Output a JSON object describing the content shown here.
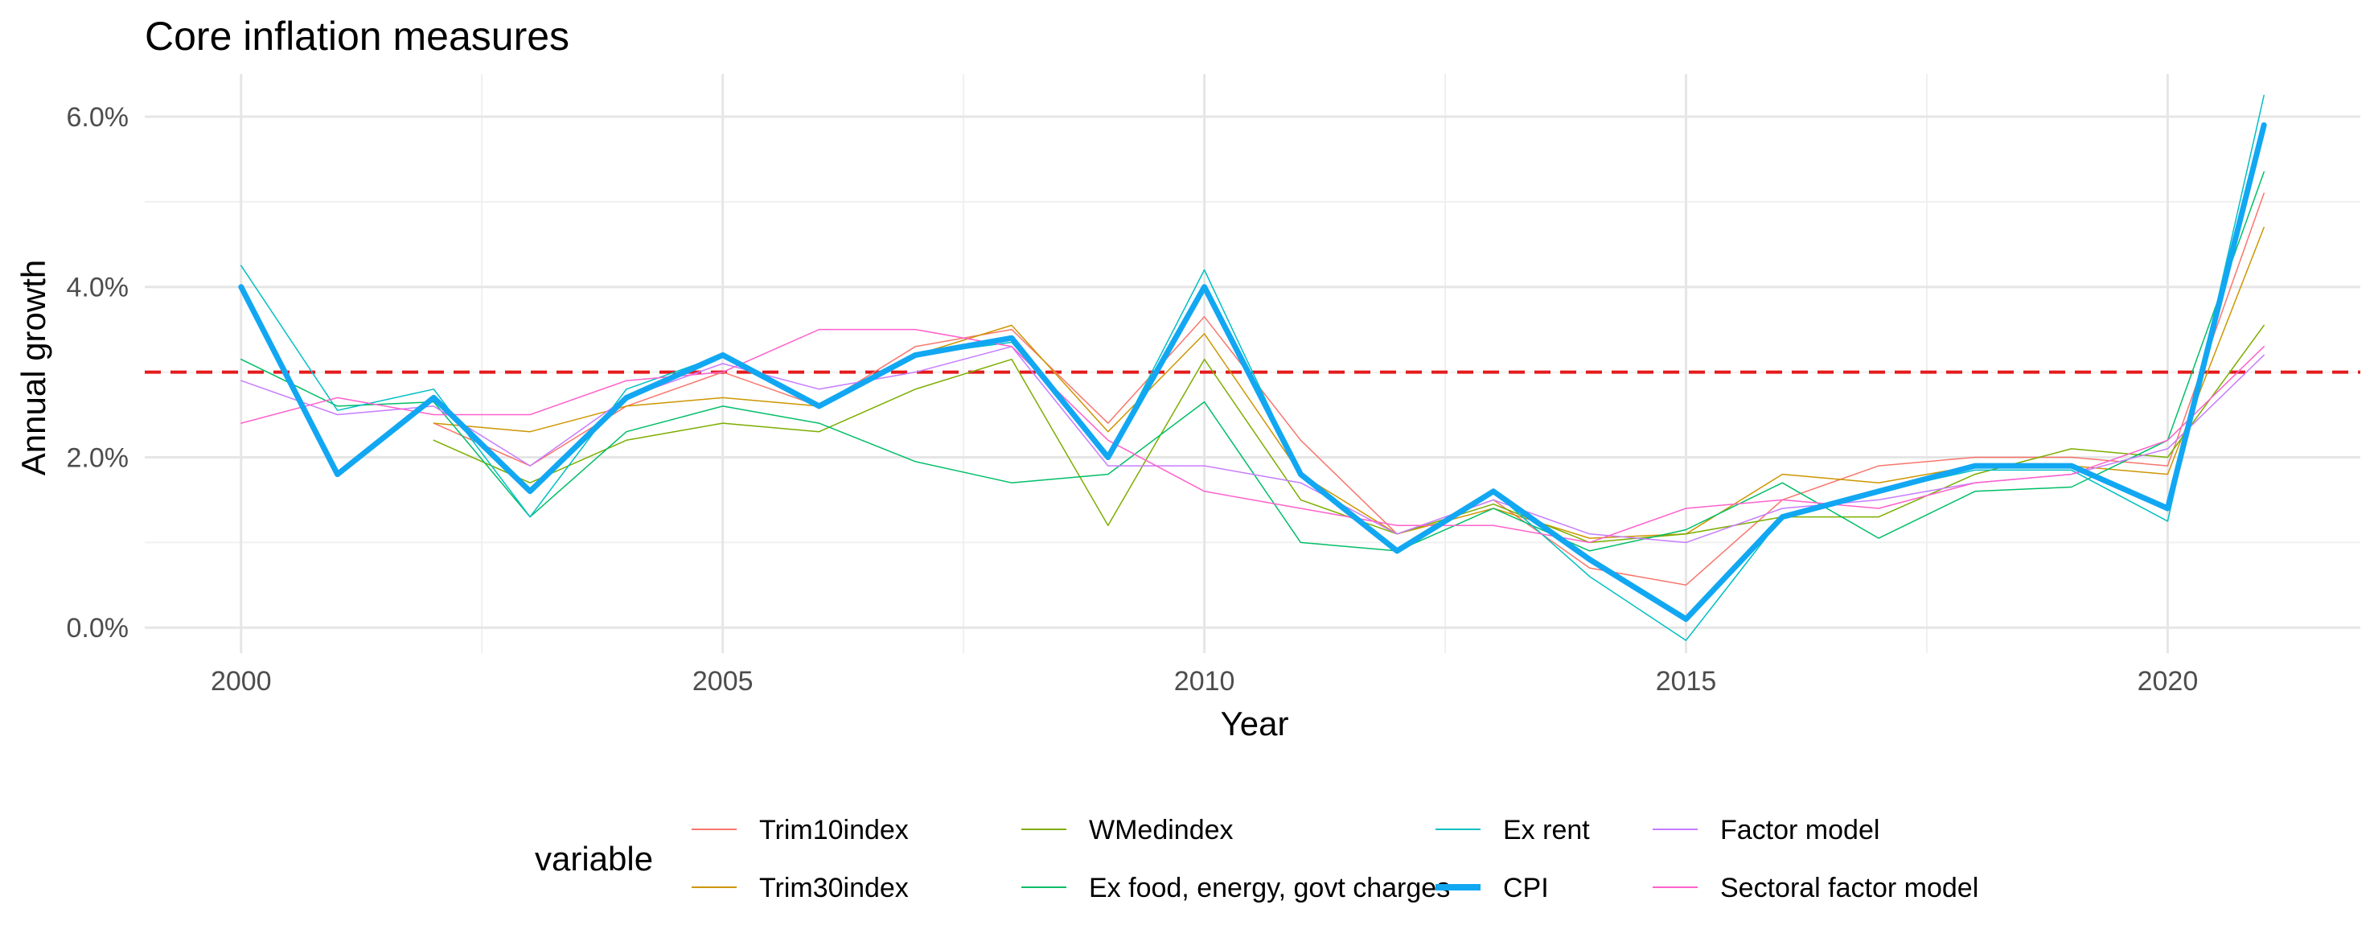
{
  "chart_data": {
    "type": "line",
    "title": "Core inflation measures",
    "xlabel": "Year",
    "ylabel": "Annual growth",
    "xlim": [
      1999,
      2022
    ],
    "ylim": [
      -0.3,
      6.5
    ],
    "x_ticks": [
      2000,
      2005,
      2010,
      2015,
      2020
    ],
    "x_tick_labels": [
      "2000",
      "2005",
      "2010",
      "2015",
      "2020"
    ],
    "y_ticks": [
      0,
      2,
      4,
      6
    ],
    "y_tick_labels": [
      "0.0%",
      "2.0%",
      "4.0%",
      "6.0%"
    ],
    "grid": true,
    "reference_line": {
      "y": 3.0,
      "color": "#e41a1c",
      "style": "dashed"
    },
    "legend": {
      "title": "variable",
      "position": "bottom"
    },
    "series": [
      {
        "name": "Trim10index",
        "color": "#F8766D",
        "width": 1.5,
        "x": [
          2002,
          2003,
          2004,
          2005,
          2006,
          2007,
          2008,
          2009,
          2010,
          2011,
          2012,
          2013,
          2014,
          2015,
          2016,
          2017,
          2018,
          2019,
          2020,
          2021
        ],
        "y": [
          2.4,
          1.9,
          2.6,
          3.0,
          2.6,
          3.3,
          3.5,
          2.4,
          3.65,
          2.2,
          1.1,
          1.5,
          0.7,
          0.5,
          1.5,
          1.9,
          2.0,
          2.0,
          1.9,
          5.1
        ]
      },
      {
        "name": "Trim30index",
        "color": "#CD9600",
        "width": 1.5,
        "x": [
          2002,
          2003,
          2004,
          2005,
          2006,
          2007,
          2008,
          2009,
          2010,
          2011,
          2012,
          2013,
          2014,
          2015,
          2016,
          2017,
          2018,
          2019,
          2020,
          2021
        ],
        "y": [
          2.4,
          2.3,
          2.6,
          2.7,
          2.6,
          3.2,
          3.55,
          2.3,
          3.45,
          1.8,
          1.1,
          1.4,
          1.05,
          1.1,
          1.8,
          1.7,
          1.9,
          1.9,
          1.8,
          4.7
        ]
      },
      {
        "name": "WMedindex",
        "color": "#7CAE00",
        "width": 1.5,
        "x": [
          2002,
          2003,
          2004,
          2005,
          2006,
          2007,
          2008,
          2009,
          2010,
          2011,
          2012,
          2013,
          2014,
          2015,
          2016,
          2017,
          2018,
          2019,
          2020,
          2021
        ],
        "y": [
          2.2,
          1.7,
          2.2,
          2.4,
          2.3,
          2.8,
          3.15,
          1.2,
          3.15,
          1.5,
          1.1,
          1.45,
          1.0,
          1.1,
          1.3,
          1.3,
          1.8,
          2.1,
          2.0,
          3.55
        ]
      },
      {
        "name": "Ex food, energy, govt charges",
        "color": "#00BE67",
        "width": 1.5,
        "x": [
          2000,
          2001,
          2002,
          2003,
          2004,
          2005,
          2006,
          2007,
          2008,
          2009,
          2010,
          2011,
          2012,
          2013,
          2014,
          2015,
          2016,
          2017,
          2018,
          2019,
          2020,
          2021
        ],
        "y": [
          3.15,
          2.6,
          2.65,
          1.3,
          2.3,
          2.6,
          2.4,
          1.95,
          1.7,
          1.8,
          2.65,
          1.0,
          0.9,
          1.4,
          0.9,
          1.15,
          1.7,
          1.05,
          1.6,
          1.65,
          2.2,
          5.35
        ]
      },
      {
        "name": "Ex rent",
        "color": "#00BFC4",
        "width": 1.5,
        "x": [
          2000,
          2001,
          2002,
          2003,
          2004,
          2005,
          2006,
          2007,
          2008,
          2009,
          2010,
          2011,
          2012,
          2013,
          2014,
          2015,
          2016,
          2017,
          2018,
          2019,
          2020,
          2021
        ],
        "y": [
          4.25,
          2.55,
          2.8,
          1.3,
          2.8,
          3.2,
          2.6,
          3.2,
          3.35,
          2.0,
          4.2,
          1.8,
          0.9,
          1.6,
          0.6,
          -0.15,
          1.3,
          1.6,
          1.85,
          1.85,
          1.25,
          6.25
        ]
      },
      {
        "name": "CPI",
        "color": "#12A7F2",
        "width": 7,
        "x": [
          2000,
          2001,
          2002,
          2003,
          2004,
          2005,
          2006,
          2007,
          2008,
          2009,
          2010,
          2011,
          2012,
          2013,
          2014,
          2015,
          2016,
          2017,
          2018,
          2019,
          2020,
          2021
        ],
        "y": [
          4.0,
          1.8,
          2.7,
          1.6,
          2.7,
          3.2,
          2.6,
          3.2,
          3.4,
          2.0,
          4.0,
          1.8,
          0.9,
          1.6,
          0.8,
          0.1,
          1.3,
          1.6,
          1.9,
          1.9,
          1.4,
          5.9
        ]
      },
      {
        "name": "Factor model",
        "color": "#C77CFF",
        "width": 1.5,
        "x": [
          2000,
          2001,
          2002,
          2003,
          2004,
          2005,
          2006,
          2007,
          2008,
          2009,
          2010,
          2011,
          2012,
          2013,
          2014,
          2015,
          2016,
          2017,
          2018,
          2019,
          2020,
          2021
        ],
        "y": [
          2.9,
          2.5,
          2.6,
          1.9,
          2.7,
          3.1,
          2.8,
          3.0,
          3.3,
          1.9,
          1.9,
          1.7,
          1.1,
          1.5,
          1.1,
          1.0,
          1.4,
          1.5,
          1.7,
          1.8,
          2.1,
          3.2
        ]
      },
      {
        "name": "Sectoral factor model",
        "color": "#FF61CC",
        "width": 1.5,
        "x": [
          2000,
          2001,
          2002,
          2003,
          2004,
          2005,
          2006,
          2007,
          2008,
          2009,
          2010,
          2011,
          2012,
          2013,
          2014,
          2015,
          2016,
          2017,
          2018,
          2019,
          2020,
          2021
        ],
        "y": [
          2.4,
          2.7,
          2.5,
          2.5,
          2.9,
          3.0,
          3.5,
          3.5,
          3.3,
          2.2,
          1.6,
          1.4,
          1.2,
          1.2,
          1.0,
          1.4,
          1.5,
          1.4,
          1.7,
          1.8,
          2.2,
          3.3
        ]
      }
    ]
  }
}
